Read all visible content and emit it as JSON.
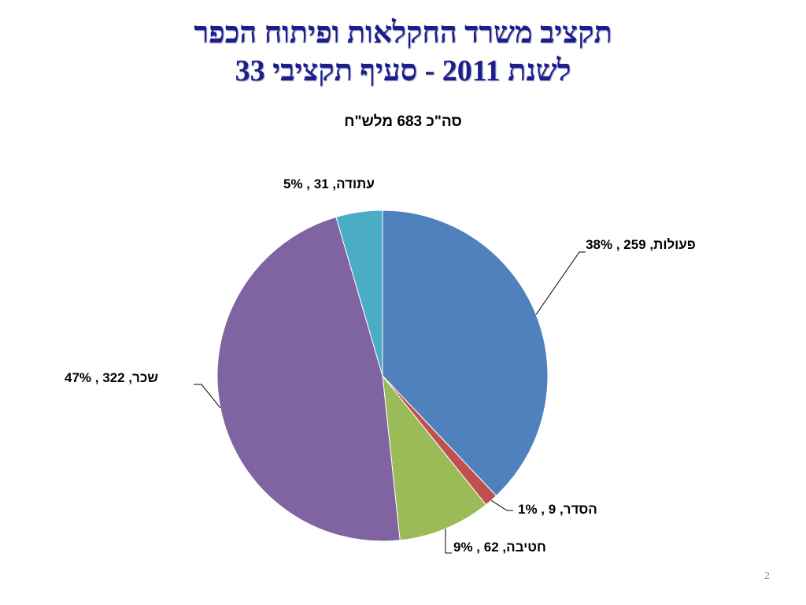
{
  "slide": {
    "title_line1": "תקציב משרד החקלאות ופיתוח הכפר",
    "title_line2": "לשנת 2011 - סעיף תקציבי 33",
    "page_number": "2"
  },
  "chart_data": {
    "type": "pie",
    "title": "סה\"כ 683 מלש\"ח",
    "total": 683,
    "slices": [
      {
        "name": "פעולות",
        "value": 259,
        "percent": "38%",
        "label": "פעולות,  259 , 38%",
        "color": "#4f81bd"
      },
      {
        "name": "הסדר",
        "value": 9,
        "percent": "1%",
        "label": "הסדר,  9 , 1%",
        "color": "#c0504d"
      },
      {
        "name": "חטיבה",
        "value": 62,
        "percent": "9%",
        "label": "חטיבה,  62 , 9%",
        "color": "#9bbb59"
      },
      {
        "name": "שכר",
        "value": 322,
        "percent": "47%",
        "label": "שכר,  322 , 47%",
        "color": "#8064a2"
      },
      {
        "name": "עתודה",
        "value": 31,
        "percent": "5%",
        "label": "עתודה,  31 , 5%",
        "color": "#4bacc6"
      }
    ]
  }
}
